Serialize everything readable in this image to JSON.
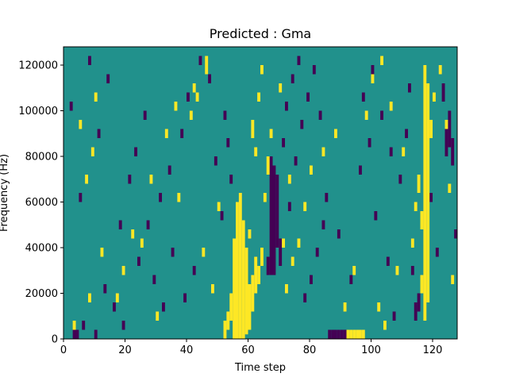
{
  "chart_data": {
    "type": "heatmap",
    "title": "Predicted : Gma",
    "xlabel": "Time step",
    "ylabel": "Frequency (Hz)",
    "xlim": [
      0,
      128
    ],
    "ylim": [
      0,
      128000
    ],
    "xticks": [
      0,
      20,
      40,
      60,
      80,
      100,
      120
    ],
    "yticks": [
      0,
      20000,
      40000,
      60000,
      80000,
      100000,
      120000
    ],
    "xtick_labels": [
      "0",
      "20",
      "40",
      "60",
      "80",
      "100",
      "120"
    ],
    "ytick_labels": [
      "0",
      "20000",
      "40000",
      "60000",
      "80000",
      "100000",
      "120000"
    ],
    "grid": false,
    "legend": "none",
    "rows": 64,
    "cols": 128,
    "colors": {
      "low": "#440154",
      "mid": "#21918c",
      "high": "#fde725"
    },
    "background_value": "mid",
    "high_cells": [
      [
        55,
        0,
        22
      ],
      [
        56,
        0,
        30
      ],
      [
        57,
        0,
        32
      ],
      [
        58,
        0,
        26
      ],
      [
        59,
        1,
        20
      ],
      [
        60,
        2,
        12
      ],
      [
        61,
        6,
        14
      ],
      [
        62,
        10,
        18
      ],
      [
        63,
        12,
        16
      ],
      [
        64,
        16,
        20
      ],
      [
        53,
        2,
        6
      ],
      [
        54,
        4,
        10
      ],
      [
        52,
        0,
        4
      ],
      [
        92,
        0,
        2
      ],
      [
        93,
        0,
        2
      ],
      [
        94,
        0,
        2
      ],
      [
        95,
        0,
        2
      ],
      [
        96,
        0,
        2
      ],
      [
        97,
        0,
        2
      ],
      [
        117,
        4,
        60
      ],
      [
        118,
        8,
        56
      ],
      [
        119,
        44,
        48
      ],
      [
        116,
        10,
        14
      ],
      [
        116,
        24,
        28
      ],
      [
        115,
        32,
        36
      ],
      [
        46,
        58,
        62
      ],
      [
        43,
        52,
        54
      ],
      [
        41,
        48,
        50
      ],
      [
        42,
        54,
        56
      ],
      [
        12,
        18,
        20
      ],
      [
        25,
        20,
        22
      ],
      [
        30,
        4,
        6
      ],
      [
        3,
        2,
        4
      ],
      [
        8,
        8,
        10
      ],
      [
        17,
        8,
        10
      ],
      [
        22,
        22,
        24
      ],
      [
        28,
        34,
        36
      ],
      [
        33,
        44,
        46
      ],
      [
        36,
        50,
        52
      ],
      [
        45,
        18,
        20
      ],
      [
        48,
        10,
        12
      ],
      [
        50,
        28,
        30
      ],
      [
        72,
        10,
        12
      ],
      [
        74,
        16,
        18
      ],
      [
        76,
        20,
        22
      ],
      [
        78,
        28,
        30
      ],
      [
        80,
        36,
        38
      ],
      [
        84,
        40,
        42
      ],
      [
        88,
        44,
        46
      ],
      [
        91,
        6,
        8
      ],
      [
        94,
        14,
        16
      ],
      [
        98,
        48,
        50
      ],
      [
        100,
        56,
        58
      ],
      [
        103,
        60,
        62
      ],
      [
        106,
        50,
        52
      ],
      [
        110,
        40,
        42
      ],
      [
        113,
        20,
        22
      ],
      [
        114,
        28,
        30
      ],
      [
        120,
        52,
        54
      ],
      [
        122,
        58,
        60
      ],
      [
        5,
        46,
        48
      ],
      [
        7,
        34,
        36
      ],
      [
        9,
        40,
        42
      ],
      [
        10,
        52,
        54
      ],
      [
        19,
        14,
        16
      ],
      [
        37,
        30,
        32
      ],
      [
        65,
        30,
        32
      ],
      [
        66,
        36,
        40
      ],
      [
        67,
        44,
        46
      ],
      [
        71,
        20,
        22
      ],
      [
        70,
        54,
        56
      ],
      [
        73,
        34,
        36
      ],
      [
        63,
        52,
        54
      ],
      [
        64,
        58,
        60
      ],
      [
        62,
        40,
        42
      ],
      [
        61,
        44,
        48
      ],
      [
        60,
        22,
        24
      ],
      [
        102,
        6,
        8
      ],
      [
        104,
        2,
        4
      ],
      [
        108,
        14,
        16
      ],
      [
        125,
        32,
        34
      ],
      [
        126,
        12,
        14
      ],
      [
        124,
        46,
        48
      ]
    ],
    "low_cells": [
      [
        67,
        14,
        40
      ],
      [
        68,
        14,
        38
      ],
      [
        69,
        20,
        36
      ],
      [
        66,
        14,
        18
      ],
      [
        70,
        16,
        22
      ],
      [
        86,
        0,
        2
      ],
      [
        87,
        0,
        2
      ],
      [
        88,
        0,
        2
      ],
      [
        89,
        0,
        2
      ],
      [
        90,
        0,
        2
      ],
      [
        91,
        0,
        2
      ],
      [
        124,
        40,
        46
      ],
      [
        125,
        42,
        50
      ],
      [
        126,
        38,
        44
      ],
      [
        123,
        52,
        56
      ],
      [
        114,
        4,
        8
      ],
      [
        115,
        6,
        10
      ],
      [
        113,
        14,
        16
      ],
      [
        3,
        0,
        2
      ],
      [
        4,
        0,
        2
      ],
      [
        6,
        2,
        4
      ],
      [
        10,
        0,
        2
      ],
      [
        13,
        10,
        12
      ],
      [
        16,
        6,
        8
      ],
      [
        19,
        2,
        4
      ],
      [
        24,
        16,
        18
      ],
      [
        27,
        24,
        26
      ],
      [
        31,
        30,
        32
      ],
      [
        34,
        36,
        38
      ],
      [
        38,
        44,
        46
      ],
      [
        40,
        52,
        54
      ],
      [
        44,
        60,
        62
      ],
      [
        47,
        56,
        58
      ],
      [
        49,
        38,
        40
      ],
      [
        51,
        26,
        28
      ],
      [
        29,
        12,
        14
      ],
      [
        23,
        40,
        42
      ],
      [
        73,
        28,
        30
      ],
      [
        75,
        38,
        40
      ],
      [
        77,
        46,
        48
      ],
      [
        79,
        52,
        54
      ],
      [
        81,
        58,
        60
      ],
      [
        83,
        48,
        50
      ],
      [
        85,
        30,
        32
      ],
      [
        89,
        22,
        24
      ],
      [
        93,
        12,
        14
      ],
      [
        96,
        36,
        38
      ],
      [
        99,
        42,
        44
      ],
      [
        101,
        26,
        28
      ],
      [
        105,
        16,
        18
      ],
      [
        107,
        4,
        6
      ],
      [
        109,
        34,
        36
      ],
      [
        111,
        44,
        46
      ],
      [
        112,
        54,
        56
      ],
      [
        119,
        30,
        32
      ],
      [
        121,
        18,
        20
      ],
      [
        127,
        22,
        24
      ],
      [
        2,
        50,
        52
      ],
      [
        5,
        30,
        32
      ],
      [
        8,
        60,
        62
      ],
      [
        11,
        44,
        46
      ],
      [
        14,
        56,
        58
      ],
      [
        18,
        24,
        26
      ],
      [
        21,
        34,
        36
      ],
      [
        26,
        48,
        50
      ],
      [
        32,
        6,
        8
      ],
      [
        35,
        18,
        20
      ],
      [
        39,
        8,
        10
      ],
      [
        42,
        14,
        16
      ],
      [
        52,
        48,
        50
      ],
      [
        53,
        42,
        44
      ],
      [
        54,
        34,
        36
      ],
      [
        71,
        42,
        44
      ],
      [
        72,
        50,
        52
      ],
      [
        74,
        56,
        58
      ],
      [
        76,
        60,
        62
      ],
      [
        78,
        8,
        10
      ],
      [
        80,
        12,
        14
      ],
      [
        82,
        18,
        20
      ],
      [
        84,
        24,
        26
      ],
      [
        97,
        52,
        54
      ],
      [
        100,
        58,
        60
      ],
      [
        103,
        48,
        50
      ],
      [
        106,
        40,
        42
      ]
    ]
  }
}
